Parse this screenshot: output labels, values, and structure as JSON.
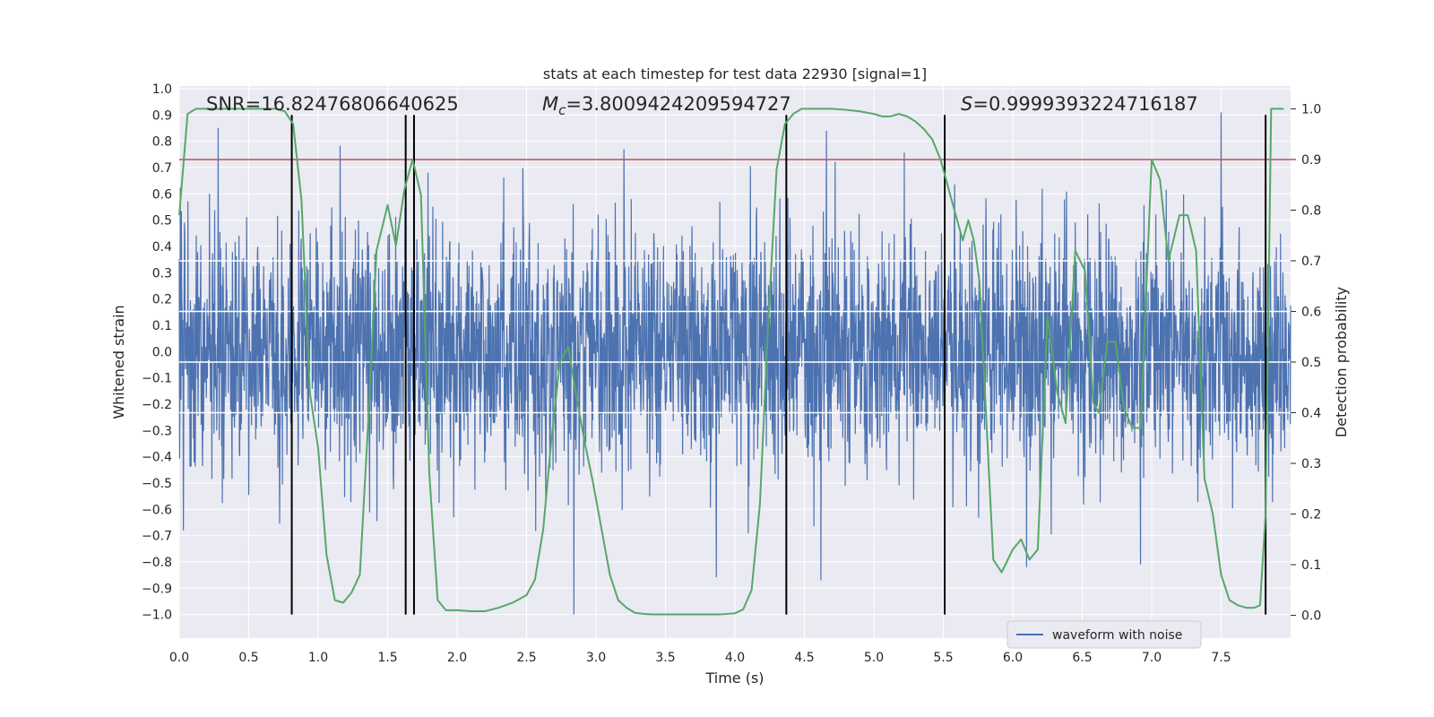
{
  "chart_data": {
    "type": "line",
    "title": "stats at each timestep for test data 22930 [signal=1]",
    "xlabel": "Time (s)",
    "ylabel": "Whitened strain",
    "y2label": "Detection probability",
    "xlim": [
      0.0,
      8.0
    ],
    "ylim": [
      -1.09,
      1.01
    ],
    "y2lim": [
      -0.045,
      1.045
    ],
    "xticks": [
      "0.0",
      "0.5",
      "1.0",
      "1.5",
      "2.0",
      "2.5",
      "3.0",
      "3.5",
      "4.0",
      "4.5",
      "5.0",
      "5.5",
      "6.0",
      "6.5",
      "7.0",
      "7.5"
    ],
    "xtick_values": [
      0.0,
      0.5,
      1.0,
      1.5,
      2.0,
      2.5,
      3.0,
      3.5,
      4.0,
      4.5,
      5.0,
      5.5,
      6.0,
      6.5,
      7.0,
      7.5
    ],
    "yticks": [
      "1.0",
      "0.9",
      "0.8",
      "0.7",
      "0.6",
      "0.5",
      "0.4",
      "0.3",
      "0.2",
      "0.1",
      "0.0",
      "−0.1",
      "−0.2",
      "−0.3",
      "−0.4",
      "−0.5",
      "−0.6",
      "−0.7",
      "−0.8",
      "−0.9",
      "−1.0"
    ],
    "ytick_values": [
      1.0,
      0.9,
      0.8,
      0.7,
      0.6,
      0.5,
      0.4,
      0.3,
      0.2,
      0.1,
      0.0,
      -0.1,
      -0.2,
      -0.3,
      -0.4,
      -0.5,
      -0.6,
      -0.7,
      -0.8,
      -0.9,
      -1.0
    ],
    "y2ticks": [
      "1.0",
      "0.9",
      "0.8",
      "0.7",
      "0.6",
      "0.5",
      "0.4",
      "0.3",
      "0.2",
      "0.1",
      "0.0"
    ],
    "y2tick_values": [
      1.0,
      0.9,
      0.8,
      0.7,
      0.6,
      0.5,
      0.4,
      0.3,
      0.2,
      0.1,
      0.0
    ],
    "annotations": {
      "snr": "SNR=16.82476806640625",
      "mc_symbol": "M",
      "mc_sub": "c",
      "mc_value": "=3.8009424209594727",
      "s_symbol": "S",
      "s_value": "=0.9999393224716187"
    },
    "legend": {
      "entry": "waveform with noise",
      "location": "lower-right"
    },
    "threshold_probability": 0.9,
    "white_lines_probability": [
      0.4,
      0.5,
      0.6,
      0.7
    ],
    "event_markers": [
      0.81,
      1.63,
      1.69,
      4.37,
      5.51,
      7.82
    ],
    "event_marker_range": [
      -1.0,
      0.9
    ],
    "waveform": {
      "name": "waveform with noise",
      "t_range": [
        0.0,
        8.0
      ],
      "n_points": 3200,
      "amplitude_rms": 0.23,
      "max": 0.91,
      "min": -1.0,
      "peaks": [
        [
          0.03,
          -0.68
        ],
        [
          0.28,
          0.85
        ],
        [
          0.81,
          0.86
        ],
        [
          1.69,
          0.78
        ],
        [
          1.79,
          0.68
        ],
        [
          2.84,
          -1.0
        ],
        [
          3.2,
          0.77
        ],
        [
          4.66,
          0.84
        ],
        [
          4.62,
          -0.87
        ],
        [
          6.1,
          -0.82
        ],
        [
          6.92,
          -0.81
        ],
        [
          7.5,
          0.91
        ]
      ]
    },
    "series": [
      {
        "name": "detection probability",
        "axis": "right",
        "x": [
          0.0,
          0.06,
          0.12,
          0.2,
          0.3,
          0.4,
          0.5,
          0.6,
          0.7,
          0.76,
          0.82,
          0.88,
          0.94,
          1.0,
          1.06,
          1.12,
          1.18,
          1.24,
          1.3,
          1.36,
          1.42,
          1.5,
          1.56,
          1.62,
          1.68,
          1.74,
          1.8,
          1.86,
          1.92,
          2.0,
          2.1,
          2.2,
          2.3,
          2.4,
          2.5,
          2.56,
          2.62,
          2.68,
          2.74,
          2.8,
          2.86,
          2.92,
          2.98,
          3.04,
          3.1,
          3.16,
          3.22,
          3.28,
          3.34,
          3.4,
          3.5,
          3.6,
          3.7,
          3.8,
          3.9,
          4.0,
          4.06,
          4.12,
          4.18,
          4.24,
          4.3,
          4.36,
          4.42,
          4.48,
          4.54,
          4.6,
          4.7,
          4.8,
          4.9,
          5.0,
          5.06,
          5.12,
          5.18,
          5.24,
          5.3,
          5.36,
          5.42,
          5.48,
          5.54,
          5.6,
          5.64,
          5.68,
          5.72,
          5.76,
          5.8,
          5.86,
          5.92,
          6.0,
          6.06,
          6.12,
          6.18,
          6.25,
          6.32,
          6.38,
          6.45,
          6.52,
          6.58,
          6.62,
          6.68,
          6.74,
          6.8,
          6.86,
          6.92,
          7.0,
          7.06,
          7.12,
          7.2,
          7.26,
          7.32,
          7.38,
          7.44,
          7.5,
          7.56,
          7.62,
          7.68,
          7.74,
          7.78,
          7.82,
          7.86,
          7.9,
          7.95
        ],
        "y": [
          0.79,
          0.99,
          1.0,
          1.0,
          1.0,
          1.0,
          1.0,
          1.0,
          1.0,
          0.995,
          0.97,
          0.82,
          0.44,
          0.33,
          0.12,
          0.03,
          0.025,
          0.045,
          0.08,
          0.38,
          0.72,
          0.81,
          0.73,
          0.84,
          0.9,
          0.83,
          0.28,
          0.03,
          0.01,
          0.01,
          0.008,
          0.008,
          0.015,
          0.025,
          0.04,
          0.07,
          0.17,
          0.35,
          0.5,
          0.53,
          0.43,
          0.34,
          0.26,
          0.17,
          0.08,
          0.03,
          0.015,
          0.005,
          0.003,
          0.002,
          0.002,
          0.002,
          0.002,
          0.002,
          0.002,
          0.004,
          0.012,
          0.05,
          0.22,
          0.58,
          0.88,
          0.97,
          0.99,
          1.0,
          1.0,
          1.0,
          1.0,
          0.998,
          0.995,
          0.99,
          0.985,
          0.985,
          0.99,
          0.985,
          0.975,
          0.96,
          0.94,
          0.9,
          0.84,
          0.78,
          0.74,
          0.78,
          0.74,
          0.66,
          0.44,
          0.11,
          0.085,
          0.13,
          0.15,
          0.11,
          0.13,
          0.59,
          0.44,
          0.38,
          0.72,
          0.68,
          0.42,
          0.4,
          0.54,
          0.54,
          0.41,
          0.37,
          0.37,
          0.9,
          0.86,
          0.7,
          0.79,
          0.79,
          0.72,
          0.27,
          0.2,
          0.08,
          0.03,
          0.02,
          0.015,
          0.015,
          0.02,
          0.2,
          1.0,
          1.0,
          1.0
        ]
      }
    ],
    "colors": {
      "background": "#eaeaf2",
      "grid": "#ffffff",
      "waveform": "#4c72b0",
      "probability": "#55a868",
      "threshold": "#c44e52",
      "markers": "#000000"
    }
  }
}
